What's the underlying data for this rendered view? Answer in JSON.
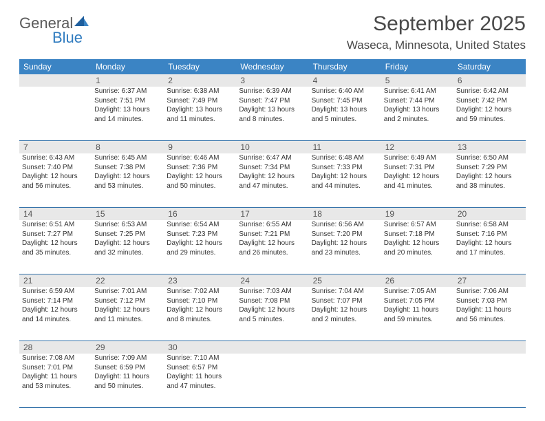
{
  "brand": {
    "word1": "General",
    "word2": "Blue"
  },
  "title": {
    "month": "September 2025",
    "location": "Waseca, Minnesota, United States"
  },
  "style": {
    "header_bg": "#3b84c4",
    "header_text": "#ffffff",
    "daynum_bg": "#e8e8e8",
    "rule_color": "#2f6fa8",
    "body_text": "#333333",
    "title_color": "#4a4a4a",
    "font_size_body": 10,
    "font_size_header": 12,
    "font_size_month": 30,
    "font_size_location": 17
  },
  "day_headers": [
    "Sunday",
    "Monday",
    "Tuesday",
    "Wednesday",
    "Thursday",
    "Friday",
    "Saturday"
  ],
  "weeks": [
    [
      {
        "n": "",
        "sr": "",
        "ss": "",
        "dl": ""
      },
      {
        "n": "1",
        "sr": "Sunrise: 6:37 AM",
        "ss": "Sunset: 7:51 PM",
        "dl": "Daylight: 13 hours and 14 minutes."
      },
      {
        "n": "2",
        "sr": "Sunrise: 6:38 AM",
        "ss": "Sunset: 7:49 PM",
        "dl": "Daylight: 13 hours and 11 minutes."
      },
      {
        "n": "3",
        "sr": "Sunrise: 6:39 AM",
        "ss": "Sunset: 7:47 PM",
        "dl": "Daylight: 13 hours and 8 minutes."
      },
      {
        "n": "4",
        "sr": "Sunrise: 6:40 AM",
        "ss": "Sunset: 7:45 PM",
        "dl": "Daylight: 13 hours and 5 minutes."
      },
      {
        "n": "5",
        "sr": "Sunrise: 6:41 AM",
        "ss": "Sunset: 7:44 PM",
        "dl": "Daylight: 13 hours and 2 minutes."
      },
      {
        "n": "6",
        "sr": "Sunrise: 6:42 AM",
        "ss": "Sunset: 7:42 PM",
        "dl": "Daylight: 12 hours and 59 minutes."
      }
    ],
    [
      {
        "n": "7",
        "sr": "Sunrise: 6:43 AM",
        "ss": "Sunset: 7:40 PM",
        "dl": "Daylight: 12 hours and 56 minutes."
      },
      {
        "n": "8",
        "sr": "Sunrise: 6:45 AM",
        "ss": "Sunset: 7:38 PM",
        "dl": "Daylight: 12 hours and 53 minutes."
      },
      {
        "n": "9",
        "sr": "Sunrise: 6:46 AM",
        "ss": "Sunset: 7:36 PM",
        "dl": "Daylight: 12 hours and 50 minutes."
      },
      {
        "n": "10",
        "sr": "Sunrise: 6:47 AM",
        "ss": "Sunset: 7:34 PM",
        "dl": "Daylight: 12 hours and 47 minutes."
      },
      {
        "n": "11",
        "sr": "Sunrise: 6:48 AM",
        "ss": "Sunset: 7:33 PM",
        "dl": "Daylight: 12 hours and 44 minutes."
      },
      {
        "n": "12",
        "sr": "Sunrise: 6:49 AM",
        "ss": "Sunset: 7:31 PM",
        "dl": "Daylight: 12 hours and 41 minutes."
      },
      {
        "n": "13",
        "sr": "Sunrise: 6:50 AM",
        "ss": "Sunset: 7:29 PM",
        "dl": "Daylight: 12 hours and 38 minutes."
      }
    ],
    [
      {
        "n": "14",
        "sr": "Sunrise: 6:51 AM",
        "ss": "Sunset: 7:27 PM",
        "dl": "Daylight: 12 hours and 35 minutes."
      },
      {
        "n": "15",
        "sr": "Sunrise: 6:53 AM",
        "ss": "Sunset: 7:25 PM",
        "dl": "Daylight: 12 hours and 32 minutes."
      },
      {
        "n": "16",
        "sr": "Sunrise: 6:54 AM",
        "ss": "Sunset: 7:23 PM",
        "dl": "Daylight: 12 hours and 29 minutes."
      },
      {
        "n": "17",
        "sr": "Sunrise: 6:55 AM",
        "ss": "Sunset: 7:21 PM",
        "dl": "Daylight: 12 hours and 26 minutes."
      },
      {
        "n": "18",
        "sr": "Sunrise: 6:56 AM",
        "ss": "Sunset: 7:20 PM",
        "dl": "Daylight: 12 hours and 23 minutes."
      },
      {
        "n": "19",
        "sr": "Sunrise: 6:57 AM",
        "ss": "Sunset: 7:18 PM",
        "dl": "Daylight: 12 hours and 20 minutes."
      },
      {
        "n": "20",
        "sr": "Sunrise: 6:58 AM",
        "ss": "Sunset: 7:16 PM",
        "dl": "Daylight: 12 hours and 17 minutes."
      }
    ],
    [
      {
        "n": "21",
        "sr": "Sunrise: 6:59 AM",
        "ss": "Sunset: 7:14 PM",
        "dl": "Daylight: 12 hours and 14 minutes."
      },
      {
        "n": "22",
        "sr": "Sunrise: 7:01 AM",
        "ss": "Sunset: 7:12 PM",
        "dl": "Daylight: 12 hours and 11 minutes."
      },
      {
        "n": "23",
        "sr": "Sunrise: 7:02 AM",
        "ss": "Sunset: 7:10 PM",
        "dl": "Daylight: 12 hours and 8 minutes."
      },
      {
        "n": "24",
        "sr": "Sunrise: 7:03 AM",
        "ss": "Sunset: 7:08 PM",
        "dl": "Daylight: 12 hours and 5 minutes."
      },
      {
        "n": "25",
        "sr": "Sunrise: 7:04 AM",
        "ss": "Sunset: 7:07 PM",
        "dl": "Daylight: 12 hours and 2 minutes."
      },
      {
        "n": "26",
        "sr": "Sunrise: 7:05 AM",
        "ss": "Sunset: 7:05 PM",
        "dl": "Daylight: 11 hours and 59 minutes."
      },
      {
        "n": "27",
        "sr": "Sunrise: 7:06 AM",
        "ss": "Sunset: 7:03 PM",
        "dl": "Daylight: 11 hours and 56 minutes."
      }
    ],
    [
      {
        "n": "28",
        "sr": "Sunrise: 7:08 AM",
        "ss": "Sunset: 7:01 PM",
        "dl": "Daylight: 11 hours and 53 minutes."
      },
      {
        "n": "29",
        "sr": "Sunrise: 7:09 AM",
        "ss": "Sunset: 6:59 PM",
        "dl": "Daylight: 11 hours and 50 minutes."
      },
      {
        "n": "30",
        "sr": "Sunrise: 7:10 AM",
        "ss": "Sunset: 6:57 PM",
        "dl": "Daylight: 11 hours and 47 minutes."
      },
      {
        "n": "",
        "sr": "",
        "ss": "",
        "dl": ""
      },
      {
        "n": "",
        "sr": "",
        "ss": "",
        "dl": ""
      },
      {
        "n": "",
        "sr": "",
        "ss": "",
        "dl": ""
      },
      {
        "n": "",
        "sr": "",
        "ss": "",
        "dl": ""
      }
    ]
  ]
}
